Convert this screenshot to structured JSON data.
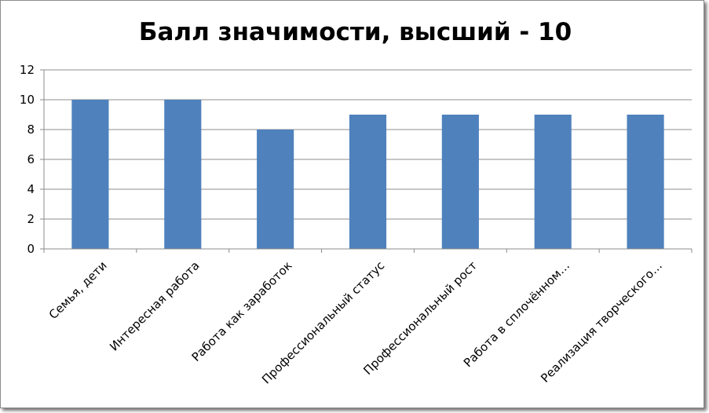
{
  "chart_data": {
    "type": "bar",
    "title": "Балл значимости, высший - 10",
    "categories": [
      "Семья, дети",
      "Интересная работа",
      "Работа как заработок",
      "Профессиональный статус",
      "Профессиональный рост",
      "Работа в сплочённом…",
      "Реализация творческого…"
    ],
    "series": [
      {
        "values": [
          10,
          10,
          8,
          9,
          9,
          9,
          9
        ]
      }
    ],
    "ylim": [
      0,
      12
    ],
    "yticks": [
      0,
      2,
      4,
      6,
      8,
      10,
      12
    ],
    "grid": true,
    "legend": false,
    "bar_color": "#4f81bd",
    "grid_color": "#8c8c8c"
  }
}
